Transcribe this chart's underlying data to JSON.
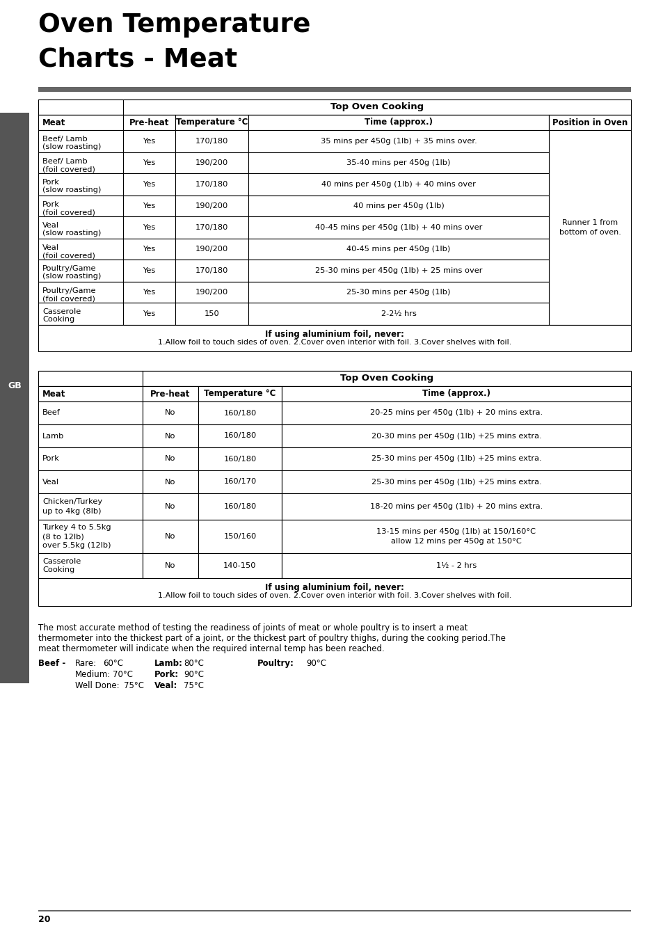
{
  "title_line1": "Oven Temperature",
  "title_line2": "Charts - Meat",
  "page_number": "20",
  "gb_label": "GB",
  "table1_header_main": "Top Oven Cooking",
  "table1_col_headers": [
    "Meat",
    "Pre-heat",
    "Temperature °C",
    "Time (approx.)",
    "Position in Oven"
  ],
  "table1_rows": [
    [
      "Beef/ Lamb\n(slow roasting)",
      "Yes",
      "170/180",
      "35 mins per 450g (1lb) + 35 mins over.",
      ""
    ],
    [
      "Beef/ Lamb\n(foil covered)",
      "Yes",
      "190/200",
      "35-40 mins per 450g (1lb)",
      ""
    ],
    [
      "Pork\n(slow roasting)",
      "Yes",
      "170/180",
      "40 mins per 450g (1lb) + 40 mins over",
      ""
    ],
    [
      "Pork\n(foil covered)",
      "Yes",
      "190/200",
      "40 mins per 450g (1lb)",
      ""
    ],
    [
      "Veal\n(slow roasting)",
      "Yes",
      "170/180",
      "40-45 mins per 450g (1lb) + 40 mins over",
      "Runner 1 from\nbottom of oven."
    ],
    [
      "Veal\n(foil covered)",
      "Yes",
      "190/200",
      "40-45 mins per 450g (1lb)",
      ""
    ],
    [
      "Poultry/Game\n(slow roasting)",
      "Yes",
      "170/180",
      "25-30 mins per 450g (1lb) + 25 mins over",
      ""
    ],
    [
      "Poultry/Game\n(foil covered)",
      "Yes",
      "190/200",
      "25-30 mins per 450g (1lb)",
      ""
    ],
    [
      "Casserole\nCooking",
      "Yes",
      "150",
      "2-2½ hrs",
      ""
    ]
  ],
  "table1_footer_bold": "If using aluminium foil, never:",
  "table1_footer_normal": "1.Allow foil to touch sides of oven. 2.Cover oven interior with foil. 3.Cover shelves with foil.",
  "table2_header_main": "Top Oven Cooking",
  "table2_col_headers": [
    "Meat",
    "Pre-heat",
    "Temperature °C",
    "Time (approx.)"
  ],
  "table2_rows": [
    [
      "Beef",
      "No",
      "160/180",
      "20-25 mins per 450g (1lb) + 20 mins extra."
    ],
    [
      "Lamb",
      "No",
      "160/180",
      "20-30 mins per 450g (1lb) +25 mins extra."
    ],
    [
      "Pork",
      "No",
      "160/180",
      "25-30 mins per 450g (1lb) +25 mins extra."
    ],
    [
      "Veal",
      "No",
      "160/170",
      "25-30 mins per 450g (1lb) +25 mins extra."
    ],
    [
      "Chicken/Turkey\nup to 4kg (8lb)",
      "No",
      "160/180",
      "18-20 mins per 450g (1lb) + 20 mins extra."
    ],
    [
      "Turkey 4 to 5.5kg\n(8 to 12lb)\nover 5.5kg (12lb)",
      "No",
      "150/160",
      "13-15 mins per 450g (1lb) at 150/160°C\nallow 12 mins per 450g at 150°C"
    ],
    [
      "Casserole\nCooking",
      "No",
      "140-150",
      "1½ - 2 hrs"
    ]
  ],
  "table2_footer_bold": "If using aluminium foil, never:",
  "table2_footer_normal": "1.Allow foil to touch sides of oven. 2.Cover oven interior with foil. 3.Cover shelves with foil.",
  "bottom_para": "The most accurate method of testing the readiness of joints of meat or whole poultry is to insert a meat\nthermometer into the thickest part of a joint, or the thickest part of poultry thighs, during the cooking period.The\nmeat thermometer will indicate when the required internal temp has been reached.",
  "bg_color": "#ffffff",
  "separator_color": "#666666",
  "sidebar_color": "#555555",
  "border_color": "#000000"
}
